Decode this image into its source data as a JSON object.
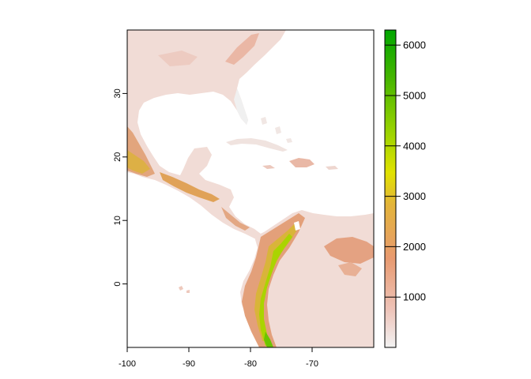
{
  "chart_data": {
    "type": "heatmap",
    "title": "",
    "xlabel": "",
    "ylabel": "",
    "xlim": [
      -100,
      -60
    ],
    "ylim": [
      -10,
      40
    ],
    "x_ticks": [
      {
        "value": -100,
        "label": "-100"
      },
      {
        "value": -90,
        "label": "-90"
      },
      {
        "value": -80,
        "label": "-80"
      },
      {
        "value": -70,
        "label": "-70"
      }
    ],
    "y_ticks": [
      {
        "value": 0,
        "label": "0"
      },
      {
        "value": 10,
        "label": "10"
      },
      {
        "value": 20,
        "label": "20"
      },
      {
        "value": 30,
        "label": "30"
      }
    ],
    "legend": {
      "min": 0,
      "max": 6300,
      "ticks": [
        {
          "value": 1000,
          "label": "1000"
        },
        {
          "value": 2000,
          "label": "2000"
        },
        {
          "value": 3000,
          "label": "3000"
        },
        {
          "value": 4000,
          "label": "4000"
        },
        {
          "value": 5000,
          "label": "5000"
        },
        {
          "value": 6000,
          "label": "6000"
        }
      ],
      "colors": [
        "#f2f2f2",
        "#eec3b8",
        "#e89a70",
        "#e3b43a",
        "#e1e200",
        "#9ad300",
        "#45b500",
        "#00a600"
      ]
    },
    "colors": {
      "ocean": "#ffffff",
      "lowland": "#f0d8d0",
      "upland": "#e8a88a",
      "highland": "#dba030",
      "peak": "#a9d400"
    }
  }
}
